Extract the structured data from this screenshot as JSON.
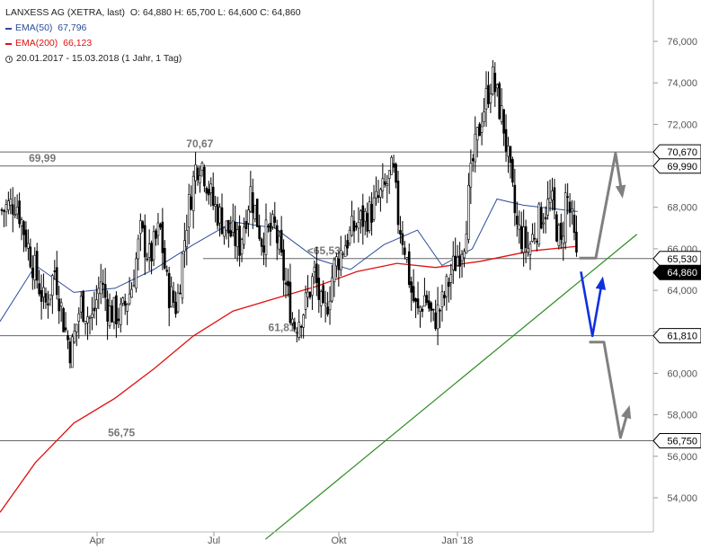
{
  "legend": {
    "instrument": "LANXESS AG (XETRA, last)",
    "ohlc": "O: 64,880  H: 65,700  L: 64,600  C: 64,860",
    "ema50_label": "EMA(50)",
    "ema50_value": "67,796",
    "ema200_label": "EMA(200)",
    "ema200_value": "66,123",
    "period": "20.01.2017 - 15.03.2018   (1 Jahr, 1 Tag)"
  },
  "colors": {
    "candle": "#000000",
    "ema50": "#2b4c9a",
    "ema200": "#e01010",
    "trendline": "#2e8b22",
    "level": "#666666",
    "arrow_gray": "#808080",
    "arrow_blue": "#1030e0",
    "price_tag": "#000000",
    "last_tag": "#000000"
  },
  "chart_data": {
    "type": "candlestick",
    "title": "LANXESS AG (XETRA, last)",
    "date_range": [
      "2017-01-20",
      "2018-03-15"
    ],
    "ylim": [
      52.0,
      76.0
    ],
    "y_ticks": [
      "54,000",
      "56,000",
      "58,000",
      "60,000",
      "62,000",
      "64,000",
      "66,000",
      "68,000",
      "70,000",
      "72,000",
      "74,000",
      "76,000"
    ],
    "y_tick_values": [
      54,
      56,
      58,
      60,
      62,
      64,
      66,
      68,
      70,
      72,
      74,
      76
    ],
    "x_ticks": [
      {
        "label": "Apr",
        "date": "2017-04-01"
      },
      {
        "label": "Jul",
        "date": "2017-07-01"
      },
      {
        "label": "Okt",
        "date": "2017-10-01"
      },
      {
        "label": "Jan '18",
        "date": "2018-01-01"
      }
    ],
    "last_close": {
      "value": 64.86,
      "label": "64,860"
    },
    "price_path": [
      {
        "date": "2017-01-20",
        "close": 67.8
      },
      {
        "date": "2017-02-01",
        "close": 68.3
      },
      {
        "date": "2017-02-10",
        "close": 66.0
      },
      {
        "date": "2017-02-22",
        "close": 63.2
      },
      {
        "date": "2017-03-01",
        "close": 65.0
      },
      {
        "date": "2017-03-08",
        "close": 62.3
      },
      {
        "date": "2017-03-13",
        "close": 61.0
      },
      {
        "date": "2017-03-20",
        "close": 63.4
      },
      {
        "date": "2017-03-28",
        "close": 62.5
      },
      {
        "date": "2017-04-04",
        "close": 64.5
      },
      {
        "date": "2017-04-10",
        "close": 63.0
      },
      {
        "date": "2017-04-20",
        "close": 62.8
      },
      {
        "date": "2017-04-28",
        "close": 64.2
      },
      {
        "date": "2017-05-05",
        "close": 66.8
      },
      {
        "date": "2017-05-12",
        "close": 65.5
      },
      {
        "date": "2017-05-20",
        "close": 67.0
      },
      {
        "date": "2017-05-26",
        "close": 64.0
      },
      {
        "date": "2017-06-02",
        "close": 63.2
      },
      {
        "date": "2017-06-10",
        "close": 67.5
      },
      {
        "date": "2017-06-17",
        "close": 70.0
      },
      {
        "date": "2017-06-21",
        "close": 70.3
      },
      {
        "date": "2017-06-30",
        "close": 68.2
      },
      {
        "date": "2017-07-10",
        "close": 67.0
      },
      {
        "date": "2017-07-20",
        "close": 66.2
      },
      {
        "date": "2017-07-28",
        "close": 68.8
      },
      {
        "date": "2017-08-05",
        "close": 66.5
      },
      {
        "date": "2017-08-15",
        "close": 67.0
      },
      {
        "date": "2017-08-22",
        "close": 64.5
      },
      {
        "date": "2017-08-29",
        "close": 62.3
      },
      {
        "date": "2017-09-06",
        "close": 63.2
      },
      {
        "date": "2017-09-13",
        "close": 64.8
      },
      {
        "date": "2017-09-20",
        "close": 62.5
      },
      {
        "date": "2017-09-27",
        "close": 65.0
      },
      {
        "date": "2017-10-05",
        "close": 66.2
      },
      {
        "date": "2017-10-15",
        "close": 67.2
      },
      {
        "date": "2017-10-25",
        "close": 67.7
      },
      {
        "date": "2017-11-05",
        "close": 68.8
      },
      {
        "date": "2017-11-12",
        "close": 69.8
      },
      {
        "date": "2017-11-16",
        "close": 67.5
      },
      {
        "date": "2017-11-21",
        "close": 66.2
      },
      {
        "date": "2017-11-26",
        "close": 64.0
      },
      {
        "date": "2017-12-01",
        "close": 62.8
      },
      {
        "date": "2017-12-07",
        "close": 63.8
      },
      {
        "date": "2017-12-13",
        "close": 62.5
      },
      {
        "date": "2017-12-20",
        "close": 63.3
      },
      {
        "date": "2017-12-27",
        "close": 64.8
      },
      {
        "date": "2018-01-05",
        "close": 66.5
      },
      {
        "date": "2018-01-10",
        "close": 70.0
      },
      {
        "date": "2018-01-16",
        "close": 72.5
      },
      {
        "date": "2018-01-22",
        "close": 74.3
      },
      {
        "date": "2018-01-29",
        "close": 72.0
      },
      {
        "date": "2018-02-02",
        "close": 69.5
      },
      {
        "date": "2018-02-06",
        "close": 67.0
      },
      {
        "date": "2018-02-13",
        "close": 66.0
      },
      {
        "date": "2018-02-20",
        "close": 67.5
      },
      {
        "date": "2018-02-27",
        "close": 68.3
      },
      {
        "date": "2018-03-05",
        "close": 66.0
      },
      {
        "date": "2018-03-08",
        "close": 68.8
      },
      {
        "date": "2018-03-12",
        "close": 67.0
      },
      {
        "date": "2018-03-15",
        "close": 64.86
      }
    ],
    "ema200": [
      {
        "date": "2017-01-20",
        "value": 53.3
      },
      {
        "date": "2017-02-15",
        "value": 55.7
      },
      {
        "date": "2017-03-15",
        "value": 57.6
      },
      {
        "date": "2017-04-15",
        "value": 58.8
      },
      {
        "date": "2017-05-15",
        "value": 60.2
      },
      {
        "date": "2017-06-15",
        "value": 61.8
      },
      {
        "date": "2017-07-15",
        "value": 63.0
      },
      {
        "date": "2017-08-15",
        "value": 63.6
      },
      {
        "date": "2017-09-15",
        "value": 64.2
      },
      {
        "date": "2017-10-15",
        "value": 64.9
      },
      {
        "date": "2017-11-15",
        "value": 65.3
      },
      {
        "date": "2017-12-15",
        "value": 65.1
      },
      {
        "date": "2018-01-15",
        "value": 65.4
      },
      {
        "date": "2018-02-15",
        "value": 65.9
      },
      {
        "date": "2018-03-15",
        "value": 66.12
      }
    ],
    "ema50": [
      {
        "date": "2017-01-20",
        "value": 62.5
      },
      {
        "date": "2017-02-15",
        "value": 65.2
      },
      {
        "date": "2017-03-15",
        "value": 63.9
      },
      {
        "date": "2017-04-15",
        "value": 64.1
      },
      {
        "date": "2017-05-15",
        "value": 65.0
      },
      {
        "date": "2017-06-15",
        "value": 66.2
      },
      {
        "date": "2017-07-15",
        "value": 67.3
      },
      {
        "date": "2017-08-15",
        "value": 67.0
      },
      {
        "date": "2017-09-15",
        "value": 65.5
      },
      {
        "date": "2017-10-10",
        "value": 65.0
      },
      {
        "date": "2017-11-05",
        "value": 66.2
      },
      {
        "date": "2017-12-01",
        "value": 66.9
      },
      {
        "date": "2017-12-20",
        "value": 65.2
      },
      {
        "date": "2018-01-10",
        "value": 66.0
      },
      {
        "date": "2018-01-25",
        "value": 68.4
      },
      {
        "date": "2018-02-10",
        "value": 68.1
      },
      {
        "date": "2018-03-15",
        "value": 67.8
      }
    ],
    "levels": [
      {
        "value": 70.67,
        "tag": "70,670",
        "label": "70,67",
        "label_date": "2017-06-20"
      },
      {
        "value": 69.99,
        "tag": "69,990",
        "label": "69,99",
        "label_date": "2017-02-20"
      },
      {
        "value": 65.53,
        "tag": "65,530",
        "label": "<65,53",
        "label_date": "2017-09-20"
      },
      {
        "value": 61.81,
        "tag": "61,810",
        "label": "61,81",
        "label_date": "2017-08-20"
      },
      {
        "value": 56.75,
        "tag": "56,750",
        "label": "56,75",
        "label_date": "2017-04-20"
      }
    ],
    "trendline": [
      {
        "date": "2017-08-08",
        "value": 52.0
      },
      {
        "date": "2018-04-20",
        "value": 66.7
      }
    ],
    "arrows": [
      {
        "color": "gray",
        "path": [
          {
            "date": "2018-03-16",
            "value": 65.55
          },
          {
            "date": "2018-03-26",
            "value": 65.55
          },
          {
            "date": "2018-04-07",
            "value": 70.6
          },
          {
            "date": "2018-04-11",
            "value": 68.6
          }
        ]
      },
      {
        "color": "gray",
        "path": [
          {
            "date": "2018-03-22",
            "value": 61.5
          },
          {
            "date": "2018-03-31",
            "value": 61.5
          },
          {
            "date": "2018-04-10",
            "value": 56.9
          },
          {
            "date": "2018-04-15",
            "value": 58.3
          }
        ]
      },
      {
        "color": "blue",
        "path": [
          {
            "date": "2018-03-17",
            "value": 64.9
          },
          {
            "date": "2018-03-24",
            "value": 61.8
          },
          {
            "date": "2018-03-30",
            "value": 64.5
          }
        ]
      }
    ]
  }
}
